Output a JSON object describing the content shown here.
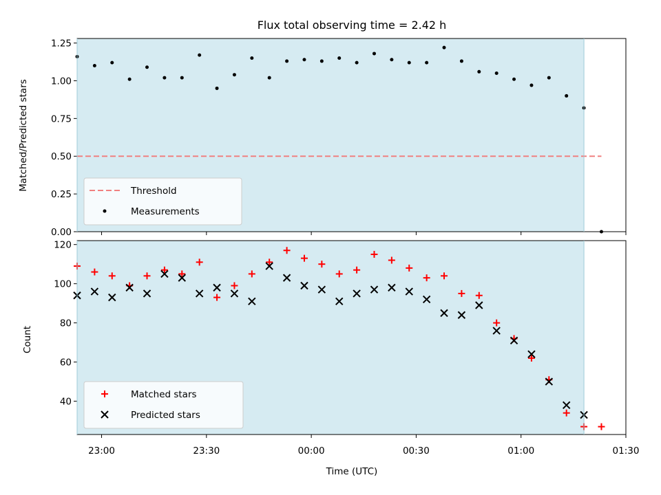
{
  "chart_data": [
    {
      "type": "scatter",
      "title": "Flux total observing time = 2.42 h",
      "xlabel": "",
      "ylabel": "Matched/Predicted stars",
      "ylim": [
        0,
        1.28
      ],
      "yticks": [
        "0.00",
        "0.25",
        "0.50",
        "0.75",
        "1.00",
        "1.25"
      ],
      "ytick_values": [
        0,
        0.25,
        0.5,
        0.75,
        1.0,
        1.25
      ],
      "xlim": [
        "22:53",
        "01:30"
      ],
      "shaded_span": [
        "22:53",
        "01:18"
      ],
      "shade_color": "#add8e6",
      "legend_position": "lower-left",
      "threshold": {
        "name": "Threshold",
        "value": 0.5,
        "x": [
          "22:53",
          "01:23"
        ],
        "color": "#f08080"
      },
      "series": [
        {
          "name": "Measurements",
          "color": "#000000",
          "x": [
            "22:53",
            "22:58",
            "23:03",
            "23:08",
            "23:13",
            "23:18",
            "23:23",
            "23:28",
            "23:33",
            "23:38",
            "23:43",
            "23:48",
            "23:53",
            "23:58",
            "00:03",
            "00:08",
            "00:13",
            "00:18",
            "00:23",
            "00:28",
            "00:33",
            "00:38",
            "00:43",
            "00:48",
            "00:53",
            "00:58",
            "01:03",
            "01:08",
            "01:13",
            "01:18",
            "01:23"
          ],
          "y": [
            1.16,
            1.1,
            1.12,
            1.01,
            1.09,
            1.02,
            1.02,
            1.17,
            0.95,
            1.04,
            1.15,
            1.02,
            1.13,
            1.14,
            1.13,
            1.15,
            1.12,
            1.18,
            1.14,
            1.12,
            1.12,
            1.22,
            1.13,
            1.06,
            1.05,
            1.01,
            0.97,
            1.02,
            0.9,
            0.82,
            0.0
          ]
        }
      ]
    },
    {
      "type": "scatter",
      "title": "",
      "xlabel": "Time (UTC)",
      "ylabel": "Count",
      "ylim": [
        23,
        122
      ],
      "yticks": [
        "40",
        "60",
        "80",
        "100",
        "120"
      ],
      "ytick_values": [
        40,
        60,
        80,
        100,
        120
      ],
      "xlim": [
        "22:53",
        "01:30"
      ],
      "xticks": [
        "23:00",
        "23:30",
        "00:00",
        "00:30",
        "01:00",
        "01:30"
      ],
      "shaded_span": [
        "22:53",
        "01:18"
      ],
      "shade_color": "#add8e6",
      "legend_position": "lower-left",
      "series": [
        {
          "name": "Matched stars",
          "marker": "plus",
          "color": "#ff0000",
          "x": [
            "22:53",
            "22:58",
            "23:03",
            "23:08",
            "23:13",
            "23:18",
            "23:23",
            "23:28",
            "23:33",
            "23:38",
            "23:43",
            "23:48",
            "23:53",
            "23:58",
            "00:03",
            "00:08",
            "00:13",
            "00:18",
            "00:23",
            "00:28",
            "00:33",
            "00:38",
            "00:43",
            "00:48",
            "00:53",
            "00:58",
            "01:03",
            "01:08",
            "01:13",
            "01:18",
            "01:23"
          ],
          "y": [
            109,
            106,
            104,
            99,
            104,
            107,
            105,
            111,
            93,
            99,
            105,
            111,
            117,
            113,
            110,
            105,
            107,
            115,
            112,
            108,
            103,
            104,
            95,
            94,
            80,
            72,
            62,
            51,
            34,
            27,
            27
          ]
        },
        {
          "name": "Predicted stars",
          "marker": "x",
          "color": "#000000",
          "x": [
            "22:53",
            "22:58",
            "23:03",
            "23:08",
            "23:13",
            "23:18",
            "23:23",
            "23:28",
            "23:33",
            "23:38",
            "23:43",
            "23:48",
            "23:53",
            "23:58",
            "00:03",
            "00:08",
            "00:13",
            "00:18",
            "00:23",
            "00:28",
            "00:33",
            "00:38",
            "00:43",
            "00:48",
            "00:53",
            "00:58",
            "01:03",
            "01:08",
            "01:13",
            "01:18"
          ],
          "y": [
            94,
            96,
            93,
            98,
            95,
            105,
            103,
            95,
            98,
            95,
            91,
            109,
            103,
            99,
            97,
            91,
            95,
            97,
            98,
            96,
            92,
            85,
            84,
            89,
            76,
            71,
            64,
            50,
            38,
            33
          ]
        }
      ]
    }
  ]
}
